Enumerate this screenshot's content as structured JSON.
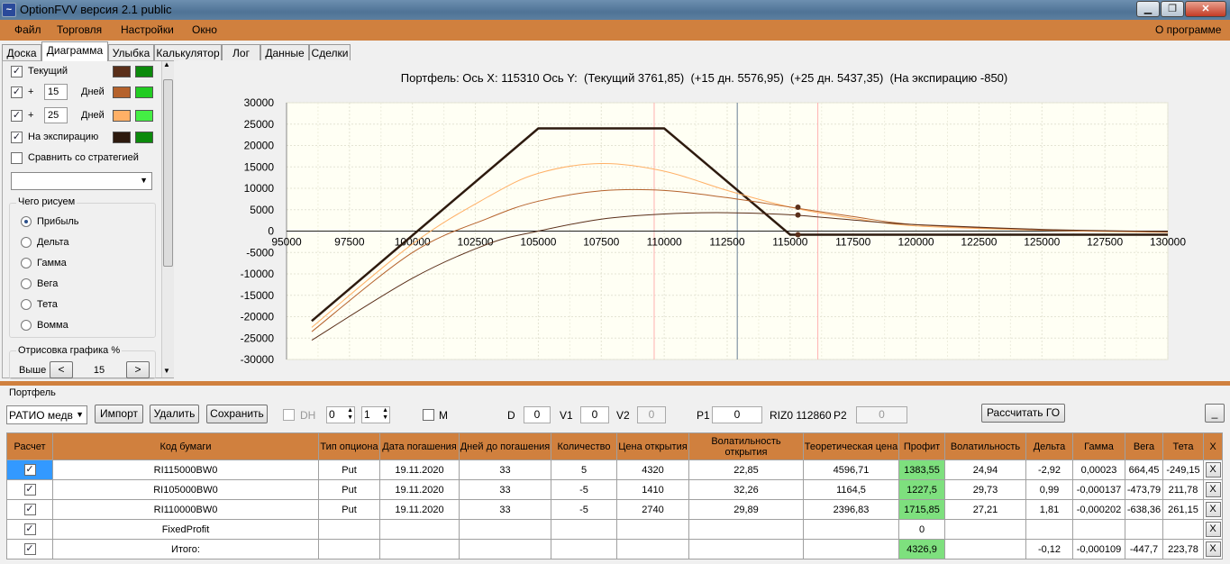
{
  "window": {
    "title": "OptionFVV версия 2.1 public",
    "icon": "app-chart-icon"
  },
  "menu": {
    "file": "Файл",
    "trade": "Торговля",
    "settings": "Настройки",
    "window": "Окно",
    "about": "О программе"
  },
  "tabs": [
    "Доска",
    "Диаграмма",
    "Улыбка",
    "Калькулятор",
    "Лог",
    "Данные",
    "Сделки"
  ],
  "left": {
    "current": "Текущий",
    "plus": "+",
    "days": "Дней",
    "days1": "15",
    "days2": "25",
    "expiry": "На экспирацию",
    "compare": "Сравнить со стратегией",
    "what_draw": "Чего рисуем",
    "radios": [
      "Прибыль",
      "Дельта",
      "Гамма",
      "Вега",
      "Тета",
      "Вомма"
    ],
    "render": "Отрисовка графика %",
    "above": "Выше",
    "above_val": "15",
    "prev": "<",
    "next": ">"
  },
  "colors": {
    "current": "#5a2f1a",
    "d15": "#b5622c",
    "d25": "#ffb066",
    "expiry": "#2d1a0e",
    "green": "#0c8a0c",
    "lightgreen": "#22cc22",
    "menu": "#d0803e",
    "profitcell": "#7ee07e"
  },
  "chart_header": "Портфель: Ось X: 115310 Ось Y:  (Текущий 3761,85)  (+15 дн. 5576,95)  (+25 дн. 5437,35)  (На экспирацию -850)",
  "chart_data": {
    "type": "line",
    "xlim": [
      95000,
      130000
    ],
    "ylim": [
      -30000,
      30000
    ],
    "x_ticks": [
      95000,
      97500,
      100000,
      102500,
      105000,
      107500,
      110000,
      112500,
      115000,
      117500,
      120000,
      122500,
      125000,
      127500,
      130000
    ],
    "y_ticks": [
      30000,
      25000,
      20000,
      15000,
      10000,
      5000,
      0,
      -5000,
      -10000,
      -15000,
      -20000,
      -25000,
      -30000
    ],
    "grid": true,
    "vertical_markers": [
      {
        "x": 109600,
        "color": "#ffb0b0"
      },
      {
        "x": 112900,
        "color": "#6a7f95"
      },
      {
        "x": 116100,
        "color": "#ffb0b0"
      }
    ],
    "series": [
      {
        "name": "На экспирацию",
        "color": "#2d1a0e",
        "width": 2.5,
        "x": [
          96000,
          105000,
          110000,
          115000,
          115310,
          130000
        ],
        "y": [
          -21000,
          24000,
          24000,
          -850,
          -850,
          -850
        ]
      },
      {
        "name": "+25 дн.",
        "color": "#ffb066",
        "width": 1,
        "x": [
          96000,
          100000,
          103000,
          105000,
          107500,
          110000,
          112500,
          115000,
          117500,
          120000,
          125000,
          130000
        ],
        "y": [
          -22500,
          -3000,
          8000,
          13500,
          15800,
          14000,
          9500,
          5600,
          3000,
          1200,
          200,
          -300
        ]
      },
      {
        "name": "+15 дн.",
        "color": "#b5622c",
        "width": 1,
        "x": [
          96000,
          100000,
          103000,
          105000,
          107500,
          110000,
          112500,
          115000,
          117500,
          120000,
          125000,
          130000
        ],
        "y": [
          -23500,
          -5000,
          3000,
          7000,
          9400,
          9500,
          7800,
          5600,
          3400,
          1500,
          300,
          -200
        ]
      },
      {
        "name": "Текущий",
        "color": "#5a2f1a",
        "width": 1,
        "x": [
          96000,
          100000,
          103000,
          105000,
          107500,
          110000,
          112500,
          115000,
          117500,
          120000,
          125000,
          130000
        ],
        "y": [
          -25500,
          -11000,
          -3000,
          0,
          2800,
          4000,
          4300,
          3800,
          2600,
          1500,
          400,
          -100
        ]
      }
    ],
    "points": [
      {
        "x": 115310,
        "y": -850
      },
      {
        "x": 115310,
        "y": 3761.85
      },
      {
        "x": 115310,
        "y": 5576.95
      }
    ]
  },
  "portfolio": {
    "label": "Портфель",
    "strategy": "РАТИО медв",
    "import": "Импорт",
    "delete": "Удалить",
    "save": "Сохранить",
    "dh": "DH",
    "spin1": "0",
    "spin2": "1",
    "m": "M",
    "d": "D",
    "d_val": "0",
    "v1": "V1",
    "v1_val": "0",
    "v2": "V2",
    "v2_val": "0",
    "p1": "P1",
    "p1_val": "0",
    "riz": "RIZ0 112860",
    "p2": "P2",
    "p2_val": "0",
    "calc_go": "Рассчитать ГО",
    "minimize": "_"
  },
  "table": {
    "headers": [
      "Расчет",
      "Код бумаги",
      "Тип опциона",
      "Дата погашения",
      "Дней до погашения",
      "Количество",
      "Цена открытия",
      "Волатильность открытия",
      "Теоретическая цена",
      "Профит",
      "Волатильность",
      "Дельта",
      "Гамма",
      "Вега",
      "Тета",
      "X"
    ],
    "rows": [
      [
        "✓",
        "RI115000BW0",
        "Put",
        "19.11.2020",
        "33",
        "5",
        "4320",
        "22,85",
        "4596,71",
        "1383,55",
        "24,94",
        "-2,92",
        "0,00023",
        "664,45",
        "-249,15",
        "X"
      ],
      [
        "✓",
        "RI105000BW0",
        "Put",
        "19.11.2020",
        "33",
        "-5",
        "1410",
        "32,26",
        "1164,5",
        "1227,5",
        "29,73",
        "0,99",
        "-0,000137",
        "-473,79",
        "211,78",
        "X"
      ],
      [
        "✓",
        "RI110000BW0",
        "Put",
        "19.11.2020",
        "33",
        "-5",
        "2740",
        "29,89",
        "2396,83",
        "1715,85",
        "27,21",
        "1,81",
        "-0,000202",
        "-638,36",
        "261,15",
        "X"
      ],
      [
        "✓",
        "FixedProfit",
        "",
        "",
        "",
        "",
        "",
        "",
        "",
        "0",
        "",
        "",
        "",
        "",
        "",
        "X"
      ],
      [
        "✓",
        "Итого:",
        "",
        "",
        "",
        "",
        "",
        "",
        "",
        "4326,9",
        "",
        "-0,12",
        "-0,000109",
        "-447,7",
        "223,78",
        "X"
      ]
    ]
  }
}
